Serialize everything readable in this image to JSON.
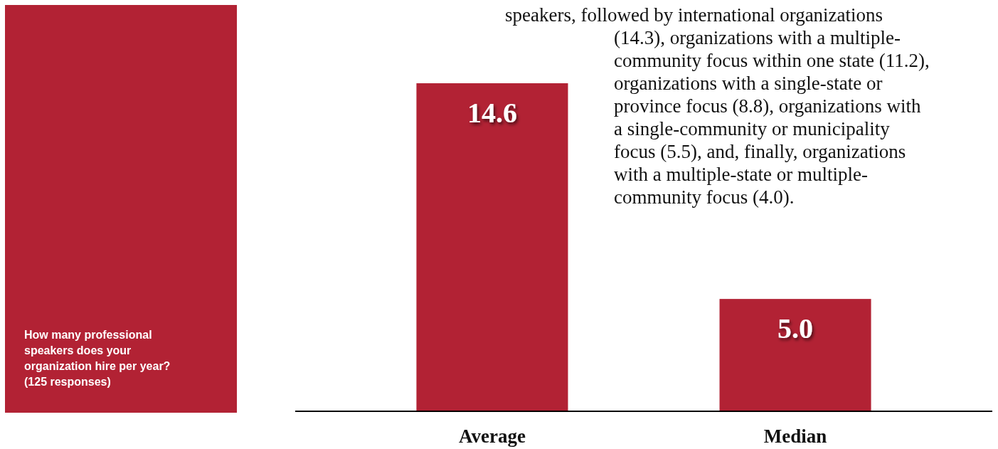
{
  "chart_data": {
    "type": "bar",
    "title": "How many professional speakers does your organization hire per year? (125 responses)",
    "categories": [
      "Average",
      "Median"
    ],
    "values": [
      14.6,
      5.0
    ],
    "value_labels": [
      "14.6",
      "5.0"
    ],
    "color": "#b22234",
    "annotations": [
      "speakers, followed by international organizations\n(14.3), organizations with a multiple-\ncommunity focus within one state (11.2),\norganizations with a single-state or\nprovince focus (8.8), organizations with\na single-community or municipality\nfocus (5.5), and, finally, organizations\nwith a multiple-state or multiple-\ncommunity focus (4.0)."
    ],
    "tick_labels": "x"
  }
}
